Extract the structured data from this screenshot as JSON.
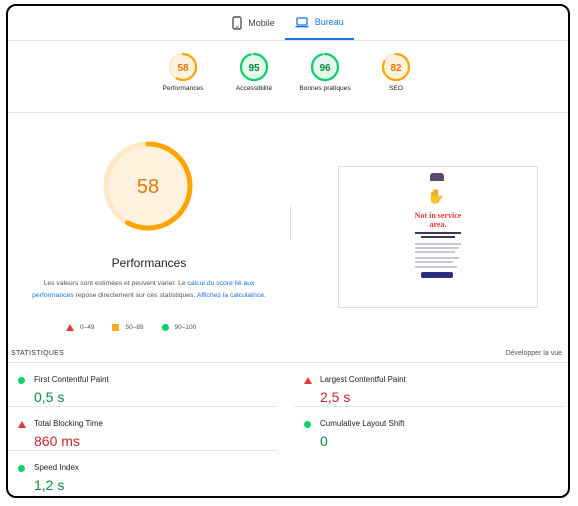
{
  "tabs": [
    {
      "label": "Mobile",
      "icon": "phone-icon",
      "active": false
    },
    {
      "label": "Bureau",
      "icon": "laptop-icon",
      "active": true
    }
  ],
  "categories": [
    {
      "label": "Performances",
      "score": 58,
      "color": "#ffa400"
    },
    {
      "label": "Accessibilité",
      "score": 95,
      "color": "#0cce6b"
    },
    {
      "label": "Bonnes pratiques",
      "score": 96,
      "color": "#0cce6b"
    },
    {
      "label": "SEO",
      "score": 82,
      "color": "#ffa400"
    }
  ],
  "main": {
    "score": 58,
    "title": "Performances",
    "desc_1": "Les valeurs sont estimées et peuvent varier. Le ",
    "link_1": "calcul du score lié aux performances",
    "desc_2": " repose directement sur ces statistiques. ",
    "link_2": "Affichez la calculatrice."
  },
  "legend": [
    {
      "range": "0–49",
      "shape": "triangle",
      "color": "#e53935"
    },
    {
      "range": "50–89",
      "shape": "square",
      "color": "#ffa726"
    },
    {
      "range": "90–100",
      "shape": "circle",
      "color": "#0cce6b"
    }
  ],
  "screenshot": {
    "heading": "Not in service area."
  },
  "stats": {
    "title": "STATISTIQUES",
    "expand": "Développer la vue",
    "metrics": [
      {
        "name": "First Contentful Paint",
        "value": "0,5 s",
        "status": "good"
      },
      {
        "name": "Largest Contentful Paint",
        "value": "2,5 s",
        "status": "poor"
      },
      {
        "name": "Total Blocking Time",
        "value": "860 ms",
        "status": "poor"
      },
      {
        "name": "Cumulative Layout Shift",
        "value": "0",
        "status": "good"
      },
      {
        "name": "Speed Index",
        "value": "1,2 s",
        "status": "good"
      }
    ]
  }
}
